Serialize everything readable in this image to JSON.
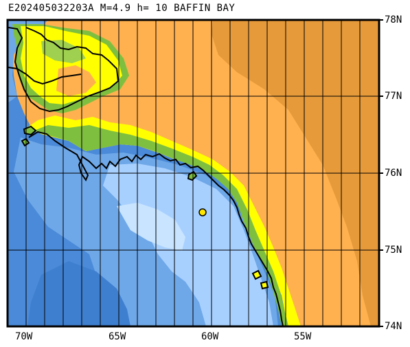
{
  "header": {
    "title": "E202405032203A M=4.9 h= 10 BAFFIN BAY"
  },
  "map": {
    "lon_labels": [
      "70W",
      "65W",
      "60W",
      "55W"
    ],
    "lat_labels": [
      "78N",
      "77N",
      "76N",
      "75N",
      "74N"
    ],
    "extent": {
      "west": "71W",
      "east": "51W",
      "south": "74N",
      "north": "78N"
    },
    "colors": {
      "deep_ocean": "#3f7fcf",
      "mid_ocean": "#6fa8e8",
      "shallow_ocean": "#a8d0ff",
      "shelf": "#c8e4ff",
      "lowland_green": "#7fbf3f",
      "coast_yellow": "#ffff00",
      "land_orange": "#ffb14f",
      "high_land_orange": "#e69a3a",
      "epicenter": "#ffe600"
    },
    "epicenter_marker": "yellow-dot-icon"
  }
}
